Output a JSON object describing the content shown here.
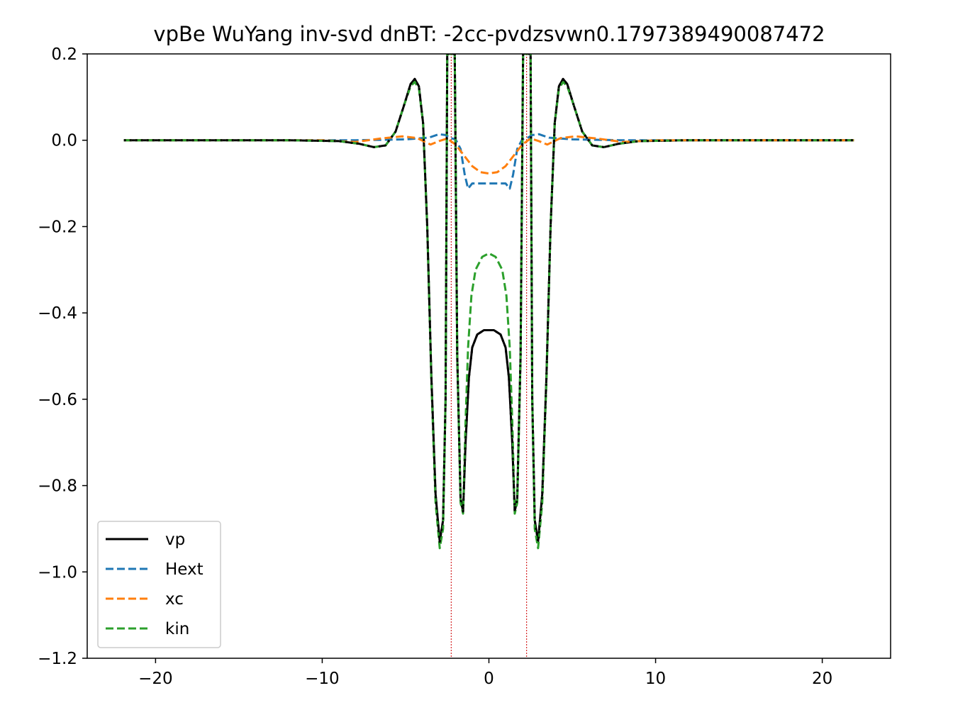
{
  "chart_data": {
    "type": "line",
    "title": "vpBe WuYang inv-svd dnBT: -2cc-pvdzsvwn0.1797389490087472",
    "xlabel": "",
    "ylabel": "",
    "xlim": [
      -24.1,
      24.1
    ],
    "ylim": [
      -1.2,
      0.2
    ],
    "x_ticks": [
      -20,
      -10,
      0,
      10,
      20
    ],
    "x_tick_labels": [
      "−20",
      "−10",
      "0",
      "10",
      "20"
    ],
    "y_ticks": [
      0.2,
      0.0,
      -0.2,
      -0.4,
      -0.6,
      -0.8,
      -1.0,
      -1.2
    ],
    "y_tick_labels": [
      "0.2",
      "0.0",
      "−0.2",
      "−0.4",
      "−0.6",
      "−0.8",
      "−1.0",
      "−1.2"
    ],
    "grid": false,
    "legend_position": "lower-left",
    "nuclei_markers_x": [
      -2.26,
      2.26
    ],
    "nuclei_marker_color": "#d62728",
    "series": [
      {
        "name": "vp",
        "color": "#000000",
        "style": "solid",
        "points": [
          [
            -21.9,
            0
          ],
          [
            -12,
            0
          ],
          [
            -9,
            -0.002
          ],
          [
            -7.8,
            -0.008
          ],
          [
            -6.9,
            -0.016
          ],
          [
            -6.2,
            -0.012
          ],
          [
            -5.6,
            0.02
          ],
          [
            -5.1,
            0.08
          ],
          [
            -4.7,
            0.13
          ],
          [
            -4.45,
            0.142
          ],
          [
            -4.2,
            0.125
          ],
          [
            -3.95,
            0.04
          ],
          [
            -3.7,
            -0.2
          ],
          [
            -3.45,
            -0.55
          ],
          [
            -3.2,
            -0.82
          ],
          [
            -2.95,
            -0.93
          ],
          [
            -2.75,
            -0.88
          ],
          [
            -2.6,
            -0.6
          ],
          [
            -2.5,
            0.2
          ],
          [
            -2.05,
            0.2
          ],
          [
            -1.9,
            -0.5
          ],
          [
            -1.7,
            -0.83
          ],
          [
            -1.55,
            -0.86
          ],
          [
            -1.4,
            -0.7
          ],
          [
            -1.2,
            -0.55
          ],
          [
            -1.0,
            -0.48
          ],
          [
            -0.7,
            -0.45
          ],
          [
            -0.3,
            -0.44
          ],
          [
            0,
            -0.44
          ],
          [
            0.3,
            -0.44
          ],
          [
            0.7,
            -0.45
          ],
          [
            1.0,
            -0.48
          ],
          [
            1.2,
            -0.55
          ],
          [
            1.4,
            -0.7
          ],
          [
            1.55,
            -0.86
          ],
          [
            1.7,
            -0.83
          ],
          [
            1.9,
            -0.5
          ],
          [
            2.05,
            0.2
          ],
          [
            2.5,
            0.2
          ],
          [
            2.6,
            -0.6
          ],
          [
            2.75,
            -0.88
          ],
          [
            2.95,
            -0.93
          ],
          [
            3.2,
            -0.82
          ],
          [
            3.45,
            -0.55
          ],
          [
            3.7,
            -0.2
          ],
          [
            3.95,
            0.04
          ],
          [
            4.2,
            0.125
          ],
          [
            4.45,
            0.142
          ],
          [
            4.7,
            0.13
          ],
          [
            5.1,
            0.08
          ],
          [
            5.6,
            0.02
          ],
          [
            6.2,
            -0.012
          ],
          [
            6.9,
            -0.016
          ],
          [
            7.8,
            -0.008
          ],
          [
            9,
            -0.002
          ],
          [
            12,
            0
          ],
          [
            21.9,
            0
          ]
        ]
      },
      {
        "name": "Hext",
        "color": "#1f77b4",
        "style": "dashed",
        "points": [
          [
            -21.9,
            0
          ],
          [
            -8,
            0
          ],
          [
            -5,
            0.002
          ],
          [
            -3.6,
            0.006
          ],
          [
            -3.0,
            0.014
          ],
          [
            -2.6,
            0.012
          ],
          [
            -2.3,
            0.005
          ],
          [
            -2.0,
            0.002
          ],
          [
            -1.7,
            -0.02
          ],
          [
            -1.45,
            -0.08
          ],
          [
            -1.25,
            -0.112
          ],
          [
            -1.0,
            -0.1
          ],
          [
            -0.6,
            -0.1
          ],
          [
            0,
            -0.1
          ],
          [
            0.6,
            -0.1
          ],
          [
            1.0,
            -0.1
          ],
          [
            1.25,
            -0.112
          ],
          [
            1.45,
            -0.08
          ],
          [
            1.7,
            -0.02
          ],
          [
            2.0,
            0.002
          ],
          [
            2.3,
            0.005
          ],
          [
            2.6,
            0.012
          ],
          [
            3.0,
            0.014
          ],
          [
            3.6,
            0.006
          ],
          [
            5,
            0.002
          ],
          [
            8,
            0
          ],
          [
            21.9,
            0
          ]
        ]
      },
      {
        "name": "xc",
        "color": "#ff7f0e",
        "style": "dashed",
        "points": [
          [
            -21.9,
            0
          ],
          [
            -10,
            0
          ],
          [
            -8,
            -0.004
          ],
          [
            -6.5,
            0.004
          ],
          [
            -5.2,
            0.009
          ],
          [
            -4.3,
            0.005
          ],
          [
            -3.5,
            -0.01
          ],
          [
            -3.0,
            -0.002
          ],
          [
            -2.5,
            0.004
          ],
          [
            -2.0,
            -0.01
          ],
          [
            -1.5,
            -0.035
          ],
          [
            -1.0,
            -0.06
          ],
          [
            -0.5,
            -0.074
          ],
          [
            0,
            -0.077
          ],
          [
            0.5,
            -0.074
          ],
          [
            1.0,
            -0.06
          ],
          [
            1.5,
            -0.035
          ],
          [
            2.0,
            -0.01
          ],
          [
            2.5,
            0.004
          ],
          [
            3.0,
            -0.002
          ],
          [
            3.5,
            -0.01
          ],
          [
            4.3,
            0.005
          ],
          [
            5.2,
            0.009
          ],
          [
            6.5,
            0.004
          ],
          [
            8,
            -0.004
          ],
          [
            10,
            0
          ],
          [
            21.9,
            0
          ]
        ]
      },
      {
        "name": "kin",
        "color": "#2ca02c",
        "style": "dashed",
        "points": [
          [
            -21.9,
            0
          ],
          [
            -12,
            0
          ],
          [
            -9,
            -0.002
          ],
          [
            -7.8,
            -0.008
          ],
          [
            -6.9,
            -0.016
          ],
          [
            -6.2,
            -0.012
          ],
          [
            -5.6,
            0.02
          ],
          [
            -5.1,
            0.08
          ],
          [
            -4.7,
            0.125
          ],
          [
            -4.45,
            0.135
          ],
          [
            -4.2,
            0.12
          ],
          [
            -3.95,
            0.04
          ],
          [
            -3.7,
            -0.2
          ],
          [
            -3.45,
            -0.56
          ],
          [
            -3.2,
            -0.84
          ],
          [
            -2.95,
            -0.945
          ],
          [
            -2.75,
            -0.9
          ],
          [
            -2.6,
            -0.6
          ],
          [
            -2.5,
            0.2
          ],
          [
            -2.05,
            0.2
          ],
          [
            -1.9,
            -0.5
          ],
          [
            -1.7,
            -0.84
          ],
          [
            -1.55,
            -0.865
          ],
          [
            -1.4,
            -0.65
          ],
          [
            -1.25,
            -0.48
          ],
          [
            -1.05,
            -0.36
          ],
          [
            -0.8,
            -0.3
          ],
          [
            -0.4,
            -0.27
          ],
          [
            0,
            -0.262
          ],
          [
            0.4,
            -0.27
          ],
          [
            0.8,
            -0.3
          ],
          [
            1.05,
            -0.36
          ],
          [
            1.25,
            -0.48
          ],
          [
            1.4,
            -0.65
          ],
          [
            1.55,
            -0.865
          ],
          [
            1.7,
            -0.84
          ],
          [
            1.9,
            -0.5
          ],
          [
            2.05,
            0.2
          ],
          [
            2.5,
            0.2
          ],
          [
            2.6,
            -0.6
          ],
          [
            2.75,
            -0.9
          ],
          [
            2.95,
            -0.945
          ],
          [
            3.2,
            -0.84
          ],
          [
            3.45,
            -0.56
          ],
          [
            3.7,
            -0.2
          ],
          [
            3.95,
            0.04
          ],
          [
            4.2,
            0.12
          ],
          [
            4.45,
            0.135
          ],
          [
            4.7,
            0.125
          ],
          [
            5.1,
            0.08
          ],
          [
            5.6,
            0.02
          ],
          [
            6.2,
            -0.012
          ],
          [
            6.9,
            -0.016
          ],
          [
            7.8,
            -0.008
          ],
          [
            9,
            -0.002
          ],
          [
            12,
            0
          ],
          [
            21.9,
            0
          ]
        ]
      },
      {
        "name": "",
        "color": "#000000",
        "style": "dotted",
        "points": [
          [
            -21.9,
            0
          ],
          [
            -12,
            0
          ],
          [
            -9,
            -0.002
          ],
          [
            -7.8,
            -0.008
          ],
          [
            -6.9,
            -0.016
          ],
          [
            -6.2,
            -0.012
          ],
          [
            -5.6,
            0.02
          ],
          [
            -5.1,
            0.08
          ],
          [
            -4.7,
            0.13
          ],
          [
            -4.45,
            0.142
          ],
          [
            -4.2,
            0.125
          ],
          [
            -3.95,
            0.04
          ],
          [
            -3.7,
            -0.2
          ],
          [
            -3.45,
            -0.55
          ],
          [
            -3.2,
            -0.82
          ],
          [
            -2.95,
            -0.93
          ],
          [
            -2.75,
            -0.88
          ],
          [
            -2.6,
            -0.6
          ],
          [
            -2.5,
            0.2
          ],
          [
            -2.05,
            0.2
          ],
          [
            -1.9,
            -0.5
          ],
          [
            -1.7,
            -0.83
          ],
          [
            -1.55,
            -0.86
          ],
          [
            -1.4,
            -0.7
          ],
          [
            -1.2,
            -0.55
          ],
          [
            -1.0,
            -0.48
          ],
          [
            -0.7,
            -0.45
          ],
          [
            -0.3,
            -0.44
          ],
          [
            0,
            -0.44
          ],
          [
            0.3,
            -0.44
          ],
          [
            0.7,
            -0.45
          ],
          [
            1.0,
            -0.48
          ],
          [
            1.2,
            -0.55
          ],
          [
            1.4,
            -0.7
          ],
          [
            1.55,
            -0.86
          ],
          [
            1.7,
            -0.83
          ],
          [
            1.9,
            -0.5
          ],
          [
            2.05,
            0.2
          ],
          [
            2.5,
            0.2
          ],
          [
            2.6,
            -0.6
          ],
          [
            2.75,
            -0.88
          ],
          [
            2.95,
            -0.93
          ],
          [
            3.2,
            -0.82
          ],
          [
            3.45,
            -0.55
          ],
          [
            3.7,
            -0.2
          ],
          [
            3.95,
            0.04
          ],
          [
            4.2,
            0.125
          ],
          [
            4.45,
            0.142
          ],
          [
            4.7,
            0.13
          ],
          [
            5.1,
            0.08
          ],
          [
            5.6,
            0.02
          ],
          [
            6.2,
            -0.012
          ],
          [
            6.9,
            -0.016
          ],
          [
            7.8,
            -0.008
          ],
          [
            9,
            -0.002
          ],
          [
            12,
            0
          ],
          [
            21.9,
            0
          ]
        ]
      }
    ],
    "legend": [
      {
        "label": "vp",
        "color": "#000000",
        "style": "solid"
      },
      {
        "label": "Hext",
        "color": "#1f77b4",
        "style": "dashed"
      },
      {
        "label": "xc",
        "color": "#ff7f0e",
        "style": "dashed"
      },
      {
        "label": "kin",
        "color": "#2ca02c",
        "style": "dashed"
      }
    ]
  }
}
